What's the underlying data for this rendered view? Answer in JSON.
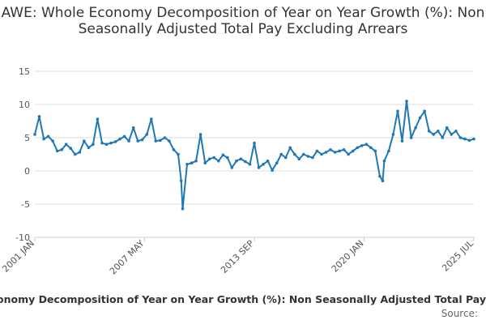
{
  "chart_data": {
    "type": "line",
    "title": "AWE: Whole Economy Decomposition of Year on Year Growth (%): Non Seasonally Adjusted Total Pay Excluding Arrears",
    "xlabel": "",
    "ylabel": "",
    "ylim": [
      -10,
      15
    ],
    "yticks": [
      -10,
      -5,
      0,
      5,
      10,
      15
    ],
    "grid": "horizontal",
    "x_range": [
      "2001-01",
      "2025-07"
    ],
    "x_tick_labels": [
      "2001 JAN",
      "2007 MAY",
      "2013 SEP",
      "2020 JAN",
      "2025 JUL"
    ],
    "series": [
      {
        "name": "AWE: Whole Economy Decomposition of Year on Year Growth (%): Non Seasonally Adjusted Total Pay Excluding Arrears",
        "color": "#1f78b4",
        "x": [
          "2001-01",
          "2001-04",
          "2001-07",
          "2001-10",
          "2002-01",
          "2002-04",
          "2002-07",
          "2002-10",
          "2003-01",
          "2003-04",
          "2003-07",
          "2003-10",
          "2004-01",
          "2004-04",
          "2004-07",
          "2004-10",
          "2005-01",
          "2005-04",
          "2005-07",
          "2005-10",
          "2006-01",
          "2006-04",
          "2006-07",
          "2006-10",
          "2007-01",
          "2007-04",
          "2007-07",
          "2007-10",
          "2008-01",
          "2008-04",
          "2008-07",
          "2008-10",
          "2009-01",
          "2009-03",
          "2009-04",
          "2009-07",
          "2009-10",
          "2010-01",
          "2010-04",
          "2010-07",
          "2010-10",
          "2011-01",
          "2011-04",
          "2011-07",
          "2011-10",
          "2012-01",
          "2012-04",
          "2012-07",
          "2012-10",
          "2013-01",
          "2013-04",
          "2013-07",
          "2013-10",
          "2014-01",
          "2014-04",
          "2014-07",
          "2014-10",
          "2015-01",
          "2015-04",
          "2015-07",
          "2015-10",
          "2016-01",
          "2016-04",
          "2016-07",
          "2016-10",
          "2017-01",
          "2017-04",
          "2017-07",
          "2017-10",
          "2018-01",
          "2018-04",
          "2018-07",
          "2018-10",
          "2019-01",
          "2019-04",
          "2019-07",
          "2019-10",
          "2020-01",
          "2020-04",
          "2020-06",
          "2020-07",
          "2020-10",
          "2021-01",
          "2021-04",
          "2021-07",
          "2021-10",
          "2022-01",
          "2022-04",
          "2022-07",
          "2022-10",
          "2023-01",
          "2023-04",
          "2023-07",
          "2023-10",
          "2024-01",
          "2024-04",
          "2024-07",
          "2024-10",
          "2025-01",
          "2025-04",
          "2025-07"
        ],
        "values": [
          5.5,
          8.2,
          4.8,
          5.2,
          4.5,
          3.0,
          3.2,
          4.0,
          3.4,
          2.5,
          2.8,
          4.5,
          3.5,
          4.0,
          7.8,
          4.2,
          4.0,
          4.2,
          4.4,
          4.8,
          5.2,
          4.5,
          6.5,
          4.5,
          4.7,
          5.5,
          7.8,
          4.5,
          4.6,
          5.0,
          4.5,
          3.2,
          2.5,
          -1.5,
          -5.7,
          1.0,
          1.2,
          1.5,
          5.5,
          1.2,
          1.8,
          2.0,
          1.5,
          2.4,
          2.0,
          0.5,
          1.5,
          1.8,
          1.4,
          1.0,
          4.2,
          0.5,
          1.0,
          1.5,
          0.1,
          1.2,
          2.5,
          2.0,
          3.5,
          2.5,
          1.8,
          2.5,
          2.2,
          2.0,
          3.0,
          2.5,
          2.8,
          3.2,
          2.8,
          3.0,
          3.2,
          2.5,
          3.0,
          3.5,
          3.8,
          4.0,
          3.5,
          3.0,
          -0.8,
          -1.5,
          1.5,
          3.0,
          5.5,
          9.0,
          4.5,
          10.5,
          5.0,
          6.5,
          8.0,
          9.0,
          6.0,
          5.5,
          6.0,
          5.0,
          6.5,
          5.5,
          6.0,
          5.0,
          4.8,
          4.6,
          4.8
        ]
      }
    ]
  },
  "footer": {
    "series_name": "AWE: Whole Economy Decomposition of Year on Year Growth (%): Non Seasonally Adjusted Total Pay",
    "source_label": "Source:"
  }
}
